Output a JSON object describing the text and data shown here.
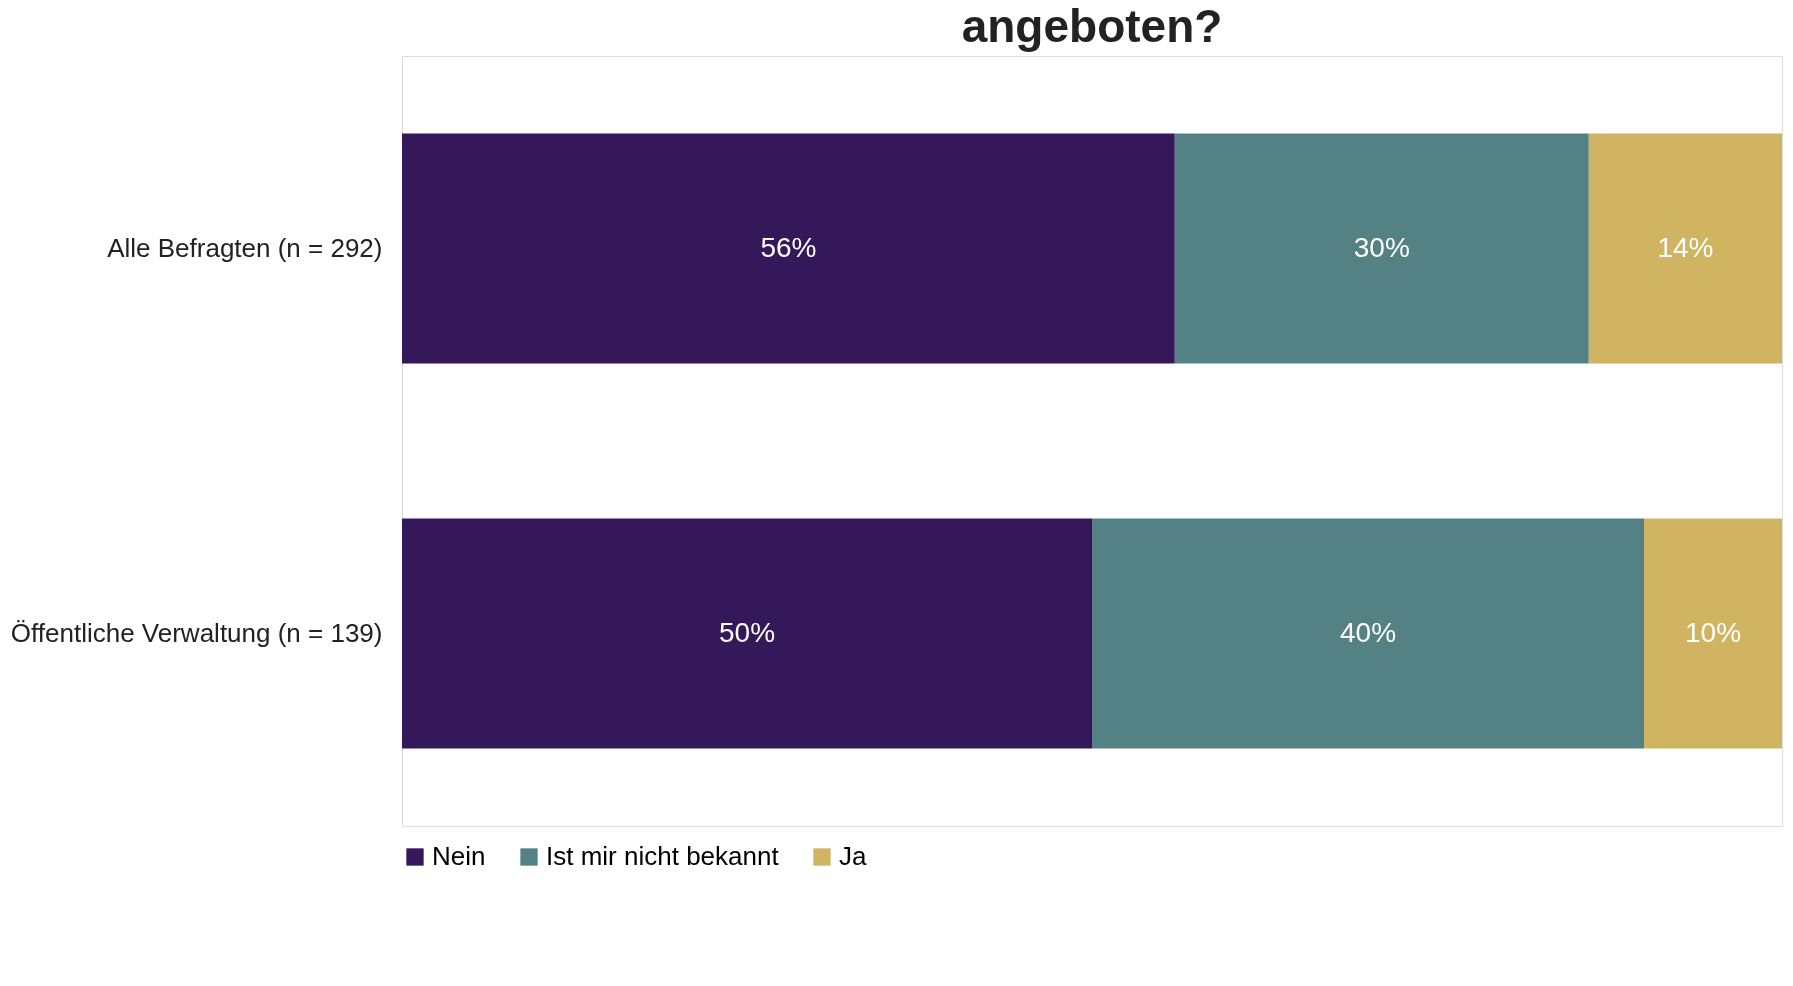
{
  "chart_data": {
    "type": "bar",
    "orientation": "horizontal",
    "stacked": true,
    "title": "angeboten?",
    "categories": [
      "Alle Befragten (n = 292)",
      "Öffentliche Verwaltung (n = 139)"
    ],
    "xlim": [
      0,
      100
    ],
    "tick_labels": "y",
    "legend": "bottom",
    "grid": false,
    "series": [
      {
        "name": "Nein",
        "color": "#35185a",
        "values": [
          56,
          50
        ],
        "value_labels": [
          "56%",
          "50%"
        ]
      },
      {
        "name": "Ist mir nicht bekannt",
        "color": "#548183",
        "values": [
          30,
          40
        ],
        "value_labels": [
          "30%",
          "40%"
        ]
      },
      {
        "name": "Ja",
        "color": "#d1b461",
        "values": [
          14,
          10
        ],
        "value_labels": [
          "14%",
          "10%"
        ]
      }
    ]
  }
}
